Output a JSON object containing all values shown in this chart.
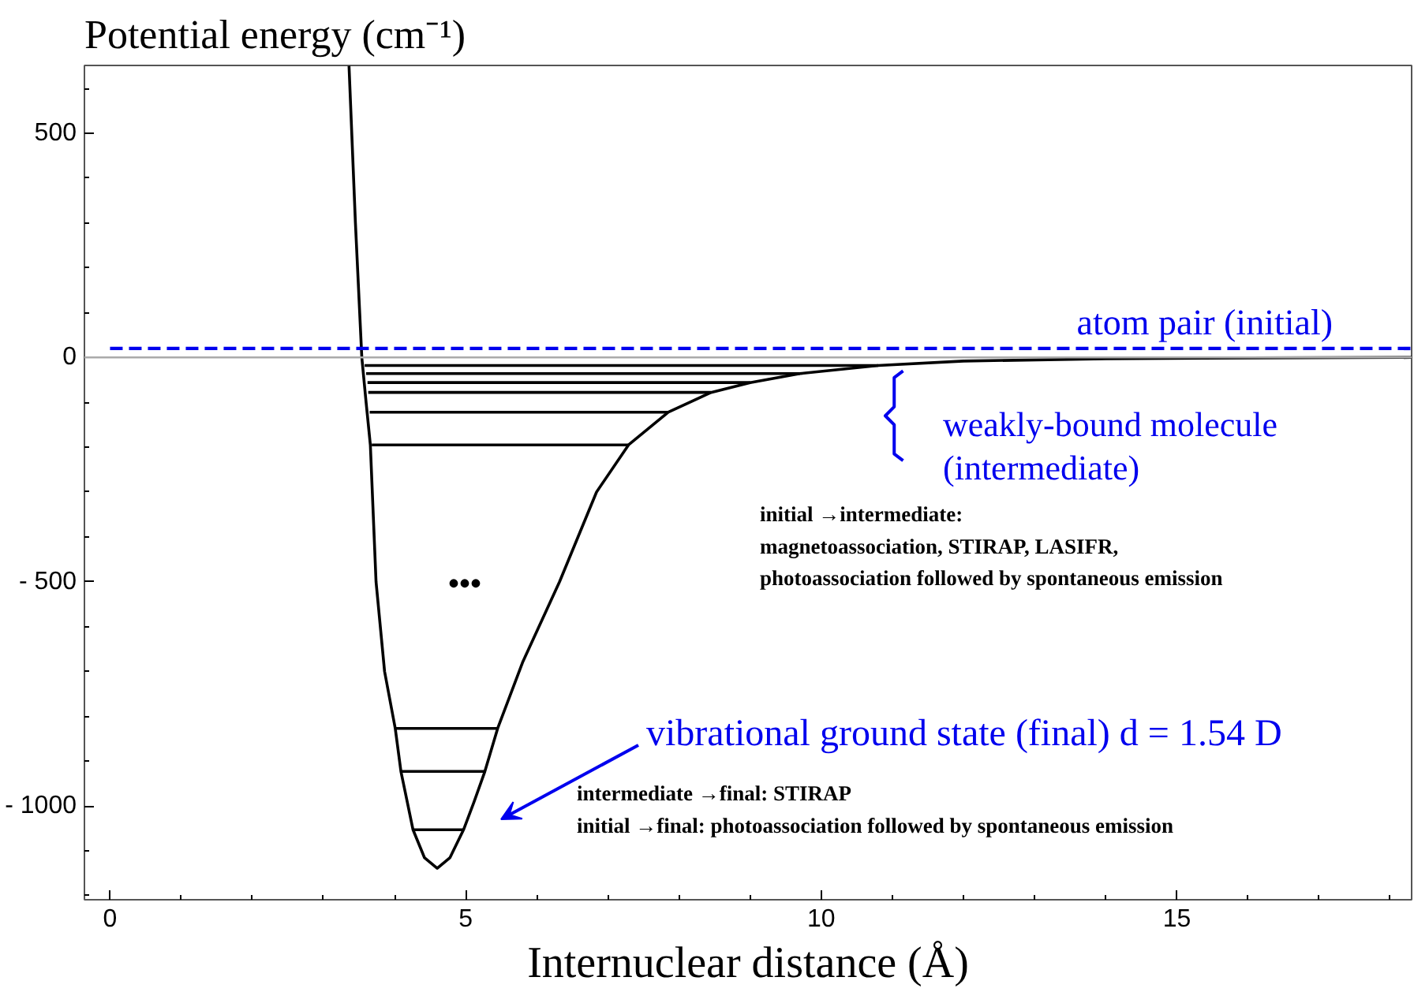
{
  "chart_data": {
    "type": "line",
    "ylabel": "Potential energy (cm⁻¹)",
    "xlabel": "Internuclear distance (Å)",
    "xlim": [
      -0.36,
      18.3
    ],
    "ylim": [
      -1209,
      651
    ],
    "xticks": [
      0,
      5,
      10,
      15
    ],
    "yticks": [
      {
        "value": -1000,
        "label": "- 1000"
      },
      {
        "value": -500,
        "label": "- 500"
      },
      0,
      500
    ],
    "grid": false,
    "marker": "none",
    "series": [
      {
        "color": "#000000",
        "x": [
          3.36,
          3.45,
          3.54,
          3.6,
          3.66,
          3.74,
          3.86,
          4.01,
          4.09,
          4.26,
          4.42,
          4.6,
          4.78,
          4.97,
          5.12,
          5.27,
          5.45,
          5.8,
          6.32,
          6.84,
          7.29,
          7.85,
          8.45,
          9.0,
          9.7,
          10.8,
          12.0,
          14.0,
          16.0,
          18.3
        ],
        "values": [
          650,
          300,
          0,
          -100,
          -195,
          -500,
          -700,
          -827,
          -923,
          -1053,
          -1115,
          -1139,
          -1115,
          -1053,
          -990,
          -923,
          -827,
          -680,
          -500,
          -300,
          -195,
          -122,
          -78,
          -56,
          -36,
          -18,
          -8,
          -3,
          -1,
          0
        ]
      },
      {
        "name": "atom pair (initial)",
        "color": "#0000ee",
        "line_style": "dashed",
        "x": [
          0,
          18.3
        ],
        "values": [
          20,
          20
        ]
      },
      {
        "color": "#000000",
        "x": [
          3.58,
          10.8
        ],
        "values": [
          -18,
          -18
        ]
      },
      {
        "color": "#000000",
        "x": [
          3.6,
          9.7
        ],
        "values": [
          -36,
          -36
        ]
      },
      {
        "color": "#000000",
        "x": [
          3.62,
          9.0
        ],
        "values": [
          -56,
          -56
        ]
      },
      {
        "color": "#000000",
        "x": [
          3.63,
          8.45
        ],
        "values": [
          -78,
          -78
        ]
      },
      {
        "color": "#000000",
        "x": [
          3.65,
          7.85
        ],
        "values": [
          -122,
          -122
        ]
      },
      {
        "color": "#000000",
        "x": [
          3.68,
          7.29
        ],
        "values": [
          -195,
          -195
        ]
      },
      {
        "color": "#000000",
        "x": [
          4.01,
          5.45
        ],
        "values": [
          -827,
          -827
        ]
      },
      {
        "color": "#000000",
        "x": [
          4.09,
          5.27
        ],
        "values": [
          -923,
          -923
        ]
      },
      {
        "color": "#000000",
        "x": [
          4.26,
          4.97
        ],
        "values": [
          -1053,
          -1053
        ]
      }
    ],
    "ref_lines": [
      {
        "axis": "y",
        "value": 0,
        "color": "#aaaaaa"
      }
    ],
    "annotations": [
      "weakly-bound molecule\n(intermediate)",
      "•••",
      "vibrational ground state (final)    d = 1.54 D",
      "initial →intermediate:\nmagnetoassociation, STIRAP, LASIFR,\nphotoassociation followed by spontaneous emission",
      "intermediate →final: STIRAP\ninitial →final: photoassociation followed by spontaneous emission"
    ]
  }
}
